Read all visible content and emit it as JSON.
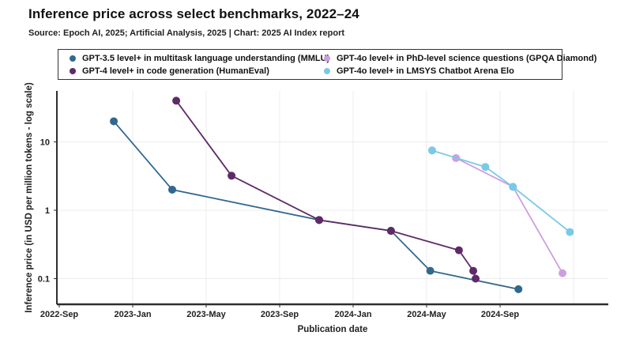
{
  "header": {
    "title": "Inference price across select benchmarks, 2022–24",
    "subtitle": "Source: Epoch AI, 2025; Artificial Analysis, 2025 | Chart: 2025 AI Index report"
  },
  "legend": {
    "items": [
      {
        "label": "GPT-3.5 level+ in multitask language understanding (MMLU)",
        "color": "#31688e"
      },
      {
        "label": "GPT-4 level+ in code generation (HumanEval)",
        "color": "#5f2a68"
      },
      {
        "label": "GPT-4o level+ in PhD-level science questions (GPQA Diamond)",
        "color": "#cd9fdf"
      },
      {
        "label": "GPT-4o level+ in LMSYS Chatbot Arena Elo",
        "color": "#79c9e7"
      }
    ]
  },
  "chart_data": {
    "type": "line",
    "title": "Inference price across select benchmarks, 2022–24",
    "xlabel": "Publication date",
    "ylabel": "Inference price (in USD per million tokens - log scale)",
    "y_scale": "log",
    "ylim": [
      0.05,
      60
    ],
    "y_ticks": [
      {
        "value": 10,
        "label": "10"
      },
      {
        "value": 1,
        "label": "1"
      },
      {
        "value": 0.1,
        "label": "0.1"
      }
    ],
    "x_ticks": [
      {
        "label": "2022-Sep",
        "m": 0
      },
      {
        "label": "2023-Jan",
        "m": 4
      },
      {
        "label": "2023-May",
        "m": 8
      },
      {
        "label": "2023-Sep",
        "m": 12
      },
      {
        "label": "2024-Jan",
        "m": 16
      },
      {
        "label": "2024-May",
        "m": 20
      },
      {
        "label": "2024-Sep",
        "m": 24
      }
    ],
    "x_gridlines_m": [
      4,
      8,
      12,
      16,
      20,
      24,
      28
    ],
    "grid": true,
    "legend_position": "top",
    "series": [
      {
        "name": "GPT-3.5 level+ in multitask language understanding (MMLU)",
        "color": "#31688e",
        "points": [
          {
            "date": "2022-Nov",
            "m": 2.97,
            "value": 20
          },
          {
            "date": "2023-Mar",
            "m": 6.15,
            "value": 2
          },
          {
            "date": "2023-Nov",
            "m": 14.15,
            "value": 0.72
          },
          {
            "date": "2024-Mar",
            "m": 18.06,
            "value": 0.5
          },
          {
            "date": "2024-May",
            "m": 20.2,
            "value": 0.13
          },
          {
            "date": "2024-Oct",
            "m": 25.0,
            "value": 0.07
          }
        ]
      },
      {
        "name": "GPT-4 level+ in code generation (HumanEval)",
        "color": "#5f2a68",
        "points": [
          {
            "date": "2023-Mar",
            "m": 6.37,
            "value": 40
          },
          {
            "date": "2023-Jun",
            "m": 9.38,
            "value": 3.2
          },
          {
            "date": "2023-Nov",
            "m": 14.15,
            "value": 0.72
          },
          {
            "date": "2024-Mar",
            "m": 18.06,
            "value": 0.5
          },
          {
            "date": "2024-Jul",
            "m": 21.76,
            "value": 0.26
          },
          {
            "date": "2024-Aug",
            "m": 22.54,
            "value": 0.13
          },
          {
            "date": "2024-Aug",
            "m": 22.67,
            "value": 0.1
          }
        ]
      },
      {
        "name": "GPT-4o level+ in PhD-level science questions (GPQA Diamond)",
        "color": "#cd9fdf",
        "points": [
          {
            "date": "2024-Jul",
            "m": 21.6,
            "value": 5.8
          },
          {
            "date": "2024-Oct",
            "m": 24.7,
            "value": 2.2
          },
          {
            "date": "2024-Dec",
            "m": 27.4,
            "value": 0.12
          }
        ]
      },
      {
        "name": "GPT-4o level+ in LMSYS Chatbot Arena Elo",
        "color": "#79c9e7",
        "points": [
          {
            "date": "2024-May",
            "m": 20.3,
            "value": 7.5
          },
          {
            "date": "2024-Aug",
            "m": 23.2,
            "value": 4.3
          },
          {
            "date": "2024-Oct",
            "m": 24.7,
            "value": 2.2
          },
          {
            "date": "2024-Dec",
            "m": 27.8,
            "value": 0.48
          }
        ]
      }
    ]
  }
}
